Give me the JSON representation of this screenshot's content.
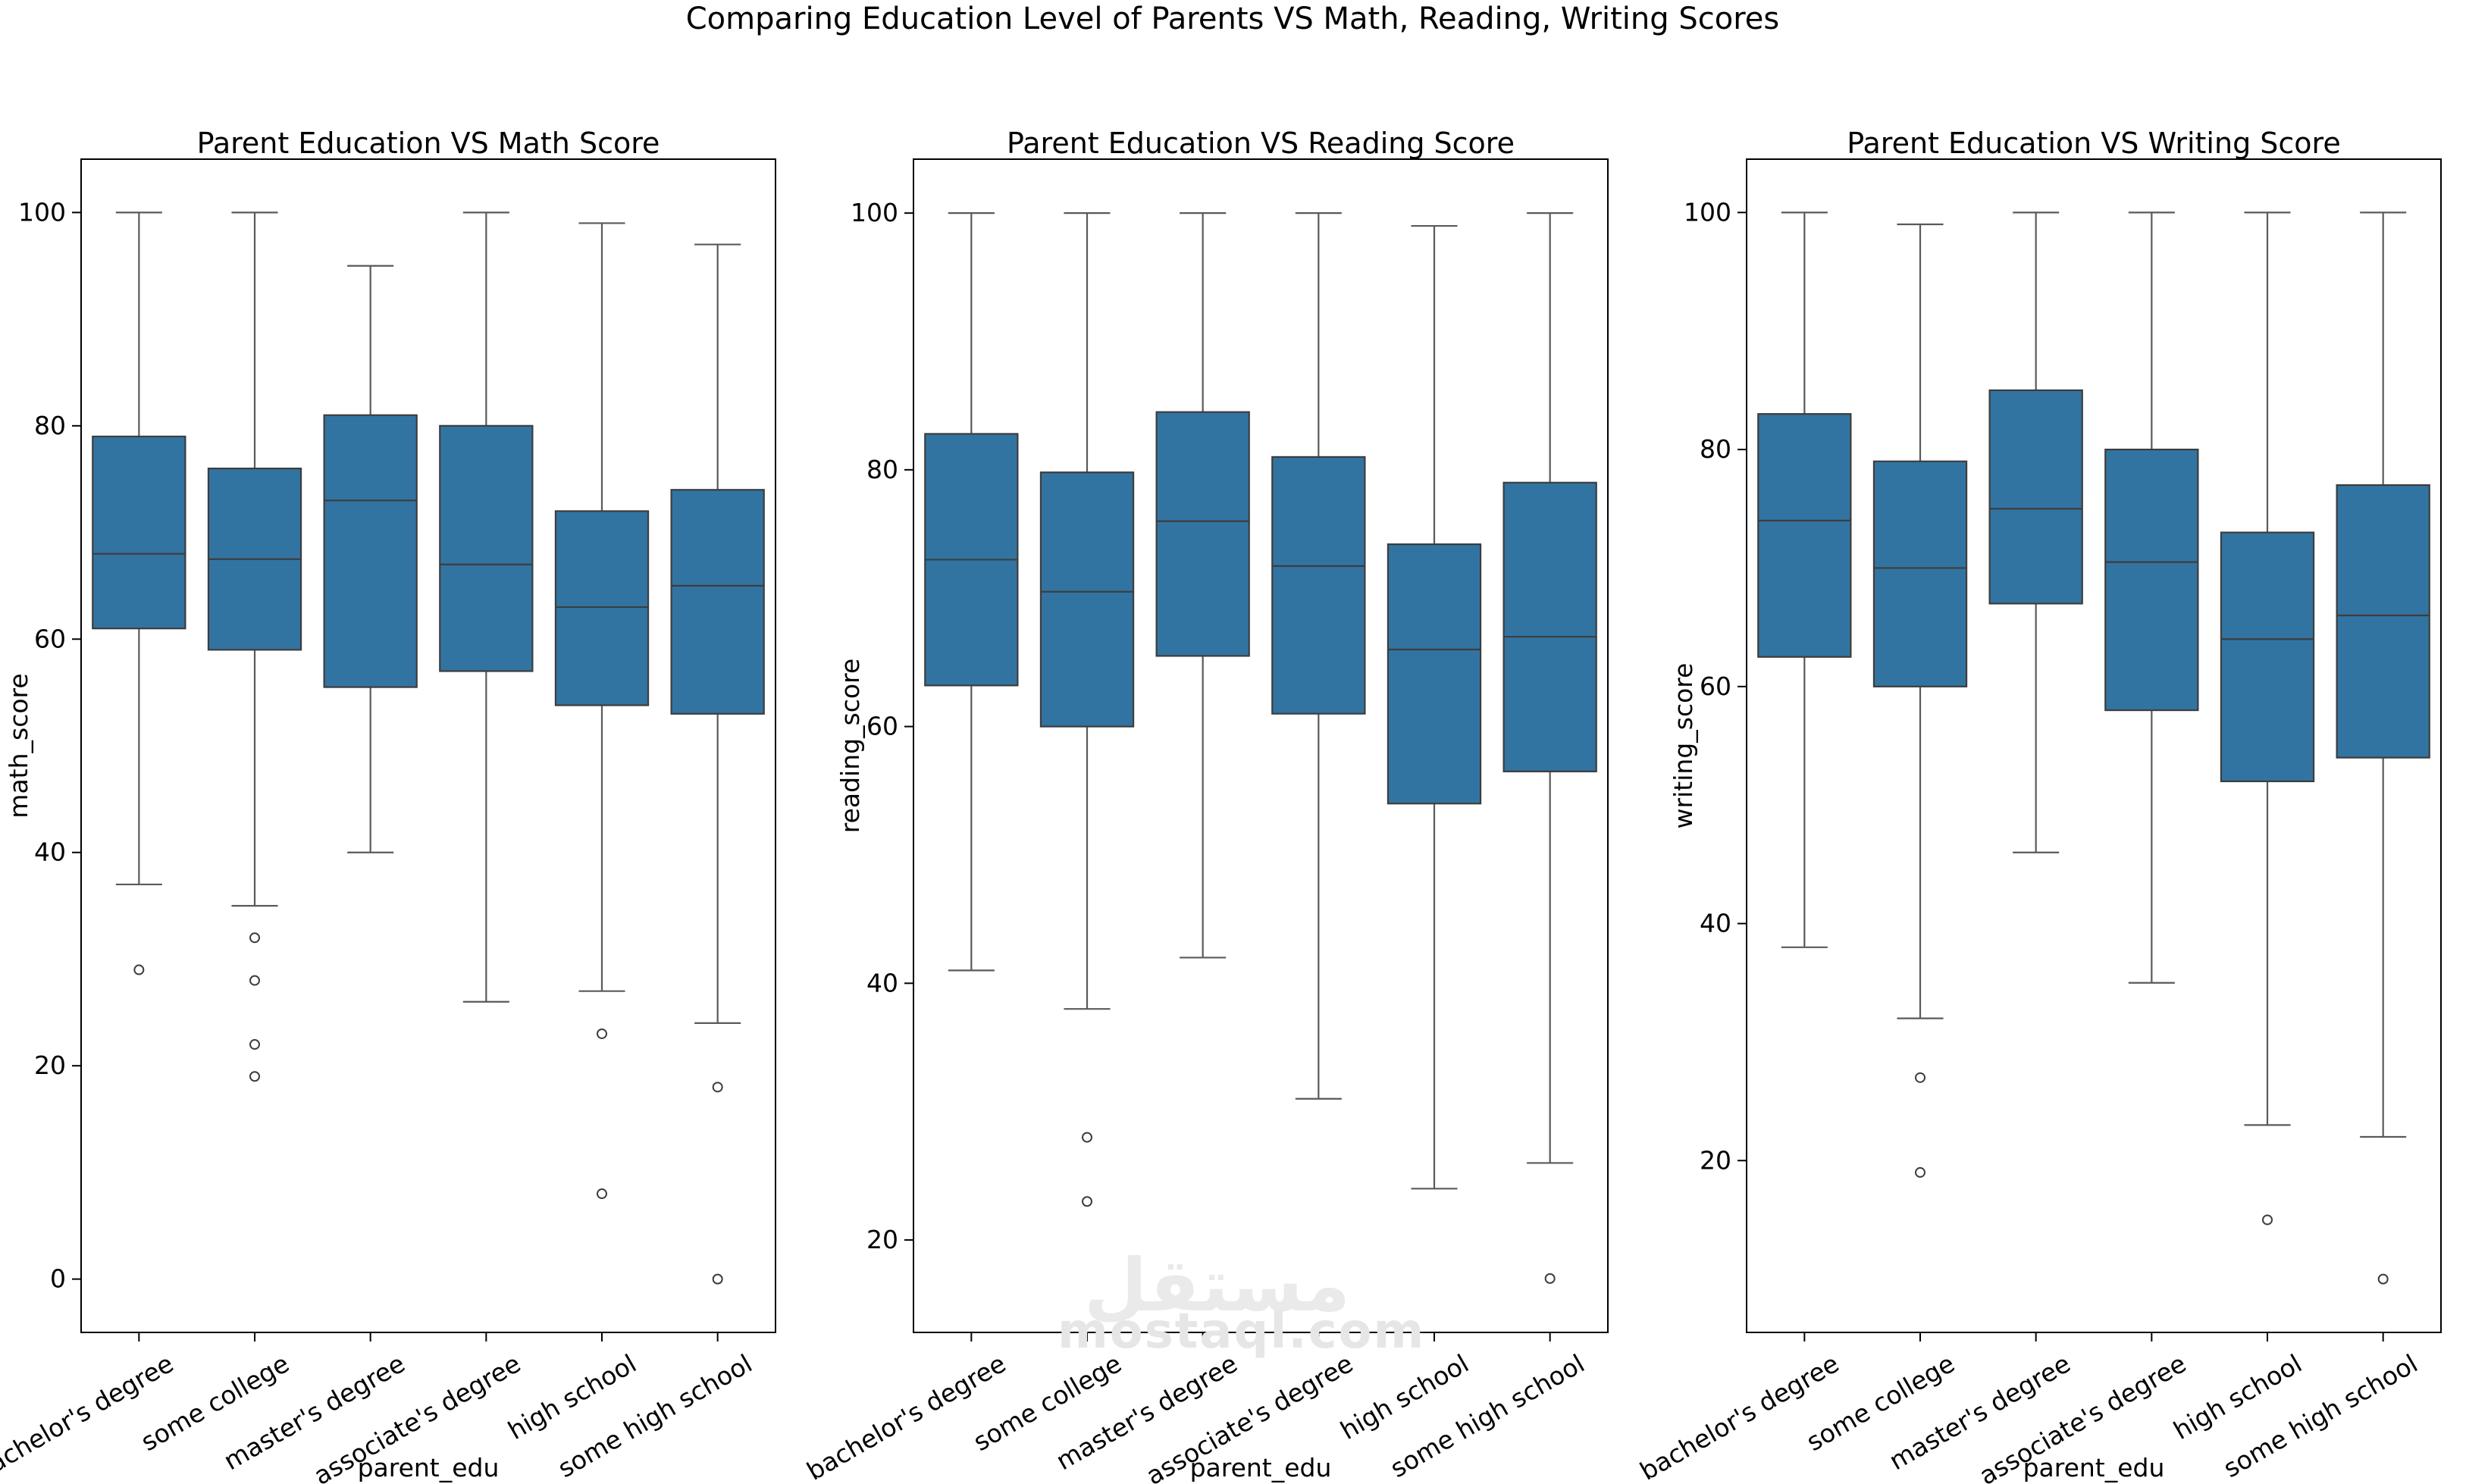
{
  "chart_data": {
    "title": "Comparing Education Level of Parents VS Math, Reading, Writing Scores",
    "type": "box",
    "categories": [
      "bachelor's degree",
      "some college",
      "master's degree",
      "associate's degree",
      "high school",
      "some high school"
    ],
    "box_color": "#3274a1",
    "grid": false,
    "panels": [
      {
        "title": "Parent Education VS Math Score",
        "xlabel": "parent_edu",
        "ylabel": "math_score",
        "ylim": [
          -5,
          105
        ],
        "yticks": [
          "0",
          "20",
          "40",
          "60",
          "80",
          "100"
        ],
        "boxes": [
          {
            "q1": 61,
            "median": 68,
            "q3": 79,
            "whislo": 37,
            "whishi": 100,
            "fliers": [
              29
            ]
          },
          {
            "q1": 59,
            "median": 67.5,
            "q3": 76,
            "whislo": 35,
            "whishi": 100,
            "fliers": [
              32,
              28,
              22,
              19
            ]
          },
          {
            "q1": 55.5,
            "median": 73,
            "q3": 81,
            "whislo": 40,
            "whishi": 95,
            "fliers": []
          },
          {
            "q1": 57,
            "median": 67,
            "q3": 80,
            "whislo": 26,
            "whishi": 100,
            "fliers": []
          },
          {
            "q1": 53.8,
            "median": 63,
            "q3": 72,
            "whislo": 27,
            "whishi": 99,
            "fliers": [
              23,
              8
            ]
          },
          {
            "q1": 53,
            "median": 65,
            "q3": 74,
            "whislo": 24,
            "whishi": 97,
            "fliers": [
              18,
              0
            ]
          }
        ]
      },
      {
        "title": "Parent Education VS Reading Score",
        "xlabel": "parent_edu",
        "ylabel": "reading_score",
        "ylim": [
          12.8,
          104.2
        ],
        "yticks": [
          "20",
          "40",
          "60",
          "80",
          "100"
        ],
        "boxes": [
          {
            "q1": 63.2,
            "median": 73,
            "q3": 82.8,
            "whislo": 41,
            "whishi": 100,
            "fliers": []
          },
          {
            "q1": 60,
            "median": 70.5,
            "q3": 79.8,
            "whislo": 38,
            "whishi": 100,
            "fliers": [
              28,
              23
            ]
          },
          {
            "q1": 65.5,
            "median": 76,
            "q3": 84.5,
            "whislo": 42,
            "whishi": 100,
            "fliers": []
          },
          {
            "q1": 61,
            "median": 72.5,
            "q3": 81,
            "whislo": 31,
            "whishi": 100,
            "fliers": []
          },
          {
            "q1": 54,
            "median": 66,
            "q3": 74.2,
            "whislo": 24,
            "whishi": 99,
            "fliers": []
          },
          {
            "q1": 56.5,
            "median": 67,
            "q3": 79,
            "whislo": 26,
            "whishi": 100,
            "fliers": [
              17
            ]
          }
        ]
      },
      {
        "title": "Parent Education VS Writing Score",
        "xlabel": "parent_edu",
        "ylabel": "writing_score",
        "ylim": [
          5.5,
          104.5
        ],
        "yticks": [
          "20",
          "40",
          "60",
          "80",
          "100"
        ],
        "boxes": [
          {
            "q1": 62.5,
            "median": 74,
            "q3": 83,
            "whislo": 38,
            "whishi": 100,
            "fliers": []
          },
          {
            "q1": 60,
            "median": 70,
            "q3": 79,
            "whislo": 32,
            "whishi": 99,
            "fliers": [
              27,
              19
            ]
          },
          {
            "q1": 67,
            "median": 75,
            "q3": 85,
            "whislo": 46,
            "whishi": 100,
            "fliers": []
          },
          {
            "q1": 58,
            "median": 70.5,
            "q3": 80,
            "whislo": 35,
            "whishi": 100,
            "fliers": []
          },
          {
            "q1": 52,
            "median": 64,
            "q3": 73,
            "whislo": 23,
            "whishi": 100,
            "fliers": [
              15
            ]
          },
          {
            "q1": 54,
            "median": 66,
            "q3": 77,
            "whislo": 22,
            "whishi": 100,
            "fliers": [
              10
            ]
          }
        ]
      }
    ]
  },
  "watermark": {
    "logo_text": "مستقل",
    "site_text": "mostaql.com"
  }
}
